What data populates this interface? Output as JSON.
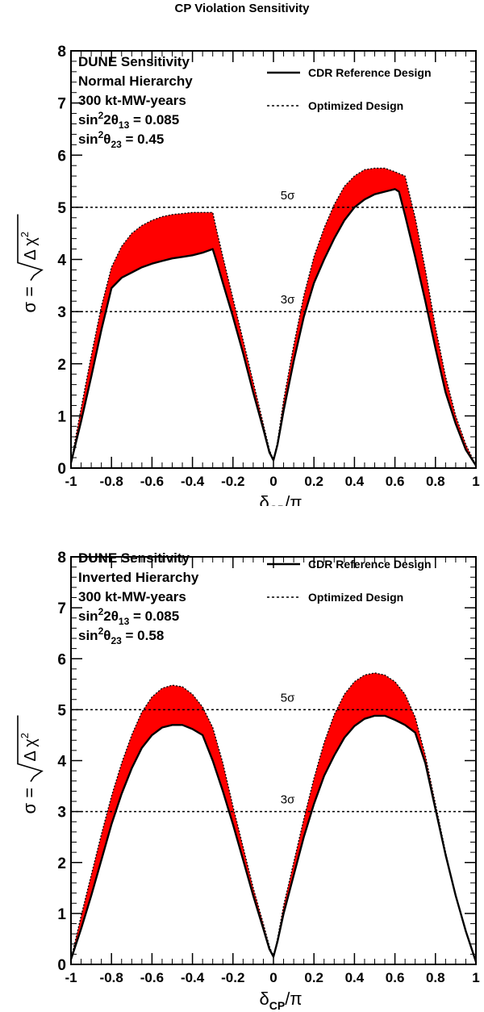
{
  "figure_title": "CP Violation Sensitivity",
  "colors": {
    "band": "#ff0000",
    "axis": "#000000"
  },
  "chart_data": [
    {
      "type": "area",
      "xlabel_main": "δ",
      "xlabel_sub": "CP",
      "xlabel_tail": "/π",
      "ylabel_lhs": "σ = ",
      "ylabel_rad_main": "Δ χ",
      "ylabel_rad_sup": "2",
      "xlim": [
        -1,
        1
      ],
      "ylim": [
        0,
        8
      ],
      "xticks": [
        -1,
        -0.8,
        -0.6,
        -0.4,
        -0.2,
        0,
        0.2,
        0.4,
        0.6,
        0.8,
        1
      ],
      "xtick_labels": [
        "-1",
        "-0.8",
        "-0.6",
        "-0.4",
        "-0.2",
        "0",
        "0.2",
        "0.4",
        "0.6",
        "0.8",
        "1"
      ],
      "yticks": [
        0,
        1,
        2,
        3,
        4,
        5,
        6,
        7,
        8
      ],
      "ytick_labels": [
        "0",
        "1",
        "2",
        "3",
        "4",
        "5",
        "6",
        "7",
        "8"
      ],
      "info_lines": [
        {
          "main": "DUNE Sensitivity",
          "sub": ""
        },
        {
          "main": "Normal Hierarchy",
          "sub": ""
        },
        {
          "main": "300 kt-MW-years",
          "sub": ""
        },
        {
          "pre": "sin",
          "sup": "2",
          "mid": "2θ",
          "sub": "13",
          "post": " = 0.085"
        },
        {
          "pre": "sin",
          "sup": "2",
          "mid": "θ",
          "sub": "23",
          "post": " = 0.45"
        }
      ],
      "legend": [
        {
          "label": "CDR Reference Design",
          "style": "solid"
        },
        {
          "label": "Optimized Design",
          "style": "dotted"
        }
      ],
      "reference_lines": [
        {
          "y": 5,
          "label": "5σ",
          "label_x": 0.07
        },
        {
          "y": 3,
          "label": "3σ",
          "label_x": 0.07
        }
      ],
      "series": [
        {
          "name": "CDR Reference Design",
          "x": [
            -1,
            -0.95,
            -0.9,
            -0.85,
            -0.8,
            -0.75,
            -0.7,
            -0.65,
            -0.6,
            -0.55,
            -0.5,
            -0.45,
            -0.4,
            -0.35,
            -0.3,
            -0.28,
            -0.25,
            -0.2,
            -0.15,
            -0.1,
            -0.05,
            -0.02,
            0,
            0.02,
            0.05,
            0.1,
            0.15,
            0.2,
            0.25,
            0.3,
            0.35,
            0.4,
            0.45,
            0.5,
            0.55,
            0.6,
            0.62,
            0.65,
            0.7,
            0.75,
            0.8,
            0.85,
            0.9,
            0.95,
            1
          ],
          "values": [
            0.1,
            0.9,
            1.75,
            2.65,
            3.45,
            3.65,
            3.75,
            3.85,
            3.92,
            3.97,
            4.02,
            4.05,
            4.08,
            4.13,
            4.2,
            3.95,
            3.55,
            2.9,
            2.2,
            1.45,
            0.75,
            0.3,
            0.15,
            0.45,
            1.1,
            2.05,
            2.9,
            3.55,
            4.0,
            4.4,
            4.75,
            5.0,
            5.15,
            5.25,
            5.3,
            5.35,
            5.3,
            4.85,
            4.05,
            3.2,
            2.3,
            1.45,
            0.85,
            0.35,
            0.05
          ]
        },
        {
          "name": "Optimized Design",
          "x": [
            -1,
            -0.95,
            -0.9,
            -0.85,
            -0.8,
            -0.75,
            -0.7,
            -0.65,
            -0.6,
            -0.55,
            -0.5,
            -0.45,
            -0.4,
            -0.35,
            -0.3,
            -0.28,
            -0.25,
            -0.2,
            -0.15,
            -0.1,
            -0.05,
            -0.02,
            0,
            0.02,
            0.05,
            0.1,
            0.15,
            0.2,
            0.25,
            0.3,
            0.35,
            0.4,
            0.45,
            0.5,
            0.55,
            0.6,
            0.65,
            0.7,
            0.75,
            0.8,
            0.85,
            0.9,
            0.95,
            1
          ],
          "values": [
            0.1,
            1.15,
            2.15,
            3.1,
            3.85,
            4.25,
            4.5,
            4.65,
            4.75,
            4.82,
            4.86,
            4.88,
            4.9,
            4.9,
            4.9,
            4.55,
            4.05,
            3.25,
            2.45,
            1.65,
            0.85,
            0.35,
            0.15,
            0.5,
            1.3,
            2.35,
            3.3,
            4.05,
            4.6,
            5.05,
            5.4,
            5.6,
            5.72,
            5.75,
            5.75,
            5.68,
            5.6,
            4.8,
            3.8,
            2.7,
            1.75,
            1.0,
            0.45,
            0.05
          ]
        }
      ]
    },
    {
      "type": "area",
      "xlabel_main": "δ",
      "xlabel_sub": "CP",
      "xlabel_tail": "/π",
      "ylabel_lhs": "σ = ",
      "ylabel_rad_main": "Δ χ",
      "ylabel_rad_sup": "2",
      "xlim": [
        -1,
        1
      ],
      "ylim": [
        0,
        8
      ],
      "xticks": [
        -1,
        -0.8,
        -0.6,
        -0.4,
        -0.2,
        0,
        0.2,
        0.4,
        0.6,
        0.8,
        1
      ],
      "xtick_labels": [
        "-1",
        "-0.8",
        "-0.6",
        "-0.4",
        "-0.2",
        "0",
        "0.2",
        "0.4",
        "0.6",
        "0.8",
        "1"
      ],
      "yticks": [
        0,
        1,
        2,
        3,
        4,
        5,
        6,
        7,
        8
      ],
      "ytick_labels": [
        "0",
        "1",
        "2",
        "3",
        "4",
        "5",
        "6",
        "7",
        "8"
      ],
      "info_lines": [
        {
          "main": "DUNE Sensitivity",
          "sub": ""
        },
        {
          "main": "Inverted Hierarchy",
          "sub": ""
        },
        {
          "main": "300 kt-MW-years",
          "sub": ""
        },
        {
          "pre": "sin",
          "sup": "2",
          "mid": "2θ",
          "sub": "13",
          "post": " = 0.085"
        },
        {
          "pre": "sin",
          "sup": "2",
          "mid": "θ",
          "sub": "23",
          "post": " = 0.58"
        }
      ],
      "legend": [
        {
          "label": "CDR Reference Design",
          "style": "solid"
        },
        {
          "label": "Optimized Design",
          "style": "dotted"
        }
      ],
      "reference_lines": [
        {
          "y": 5,
          "label": "5σ",
          "label_x": 0.07
        },
        {
          "y": 3,
          "label": "3σ",
          "label_x": 0.07
        }
      ],
      "series": [
        {
          "name": "CDR Reference Design",
          "x": [
            -1,
            -0.95,
            -0.9,
            -0.85,
            -0.8,
            -0.75,
            -0.7,
            -0.65,
            -0.6,
            -0.55,
            -0.5,
            -0.45,
            -0.4,
            -0.35,
            -0.3,
            -0.25,
            -0.2,
            -0.15,
            -0.1,
            -0.05,
            -0.02,
            0,
            0.02,
            0.05,
            0.1,
            0.15,
            0.2,
            0.25,
            0.3,
            0.35,
            0.4,
            0.45,
            0.5,
            0.55,
            0.6,
            0.65,
            0.7,
            0.75,
            0.8,
            0.85,
            0.9,
            0.95,
            1
          ],
          "values": [
            0.1,
            0.7,
            1.35,
            2.05,
            2.75,
            3.35,
            3.85,
            4.25,
            4.5,
            4.65,
            4.7,
            4.7,
            4.62,
            4.5,
            4.0,
            3.4,
            2.75,
            2.05,
            1.35,
            0.7,
            0.3,
            0.15,
            0.45,
            1.0,
            1.75,
            2.5,
            3.15,
            3.7,
            4.1,
            4.45,
            4.68,
            4.82,
            4.88,
            4.88,
            4.8,
            4.7,
            4.55,
            3.95,
            3.05,
            2.15,
            1.35,
            0.65,
            0.05
          ]
        },
        {
          "name": "Optimized Design",
          "x": [
            -1,
            -0.95,
            -0.9,
            -0.85,
            -0.8,
            -0.75,
            -0.7,
            -0.65,
            -0.6,
            -0.55,
            -0.5,
            -0.45,
            -0.4,
            -0.35,
            -0.3,
            -0.25,
            -0.2,
            -0.15,
            -0.1,
            -0.05,
            -0.02,
            0,
            0.02,
            0.05,
            0.1,
            0.15,
            0.2,
            0.25,
            0.3,
            0.35,
            0.4,
            0.45,
            0.5,
            0.55,
            0.6,
            0.65,
            0.7,
            0.75,
            0.8,
            0.85,
            0.9,
            0.95,
            1
          ],
          "values": [
            0.1,
            0.95,
            1.75,
            2.55,
            3.3,
            3.95,
            4.5,
            4.95,
            5.25,
            5.42,
            5.48,
            5.45,
            5.3,
            5.05,
            4.65,
            3.95,
            3.1,
            2.3,
            1.5,
            0.8,
            0.35,
            0.15,
            0.5,
            1.15,
            2.0,
            2.85,
            3.65,
            4.35,
            4.9,
            5.3,
            5.55,
            5.68,
            5.72,
            5.68,
            5.55,
            5.3,
            4.85,
            4.1,
            3.15,
            2.2,
            1.35,
            0.65,
            0.05
          ]
        }
      ]
    }
  ]
}
